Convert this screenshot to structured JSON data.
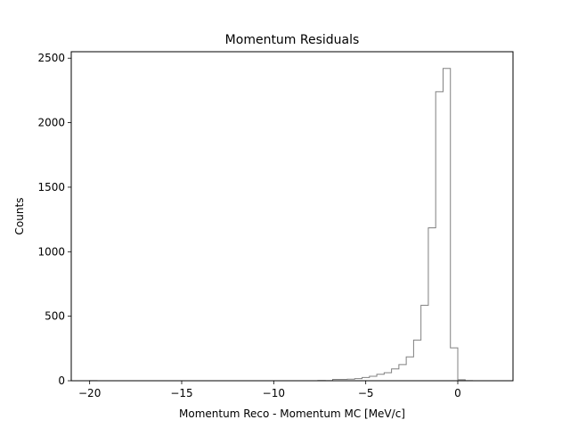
{
  "chart_data": {
    "type": "histogram",
    "title": "Momentum Residuals",
    "xlabel": "Momentum Reco - Momentum MC [MeV/c]",
    "ylabel": "Counts",
    "xlim": [
      -21.0,
      3.0
    ],
    "ylim": [
      0,
      2550
    ],
    "xticks": [
      -20,
      -15,
      -10,
      -5,
      0
    ],
    "xtick_labels": [
      "−20",
      "−15",
      "−10",
      "−5",
      "0"
    ],
    "yticks": [
      0,
      500,
      1000,
      1500,
      2000,
      2500
    ],
    "ytick_labels": [
      "0",
      "500",
      "1000",
      "1500",
      "2000",
      "2500"
    ],
    "grid": false,
    "legend": false,
    "histtype": "step",
    "line_color": "#808080",
    "bin_edges": [
      -20.0,
      -19.6,
      -19.2,
      -18.8,
      -18.4,
      -18.0,
      -17.6,
      -17.2,
      -16.8,
      -16.4,
      -16.0,
      -15.6,
      -15.2,
      -14.8,
      -14.4,
      -14.0,
      -13.6,
      -13.2,
      -12.8,
      -12.4,
      -12.0,
      -11.6,
      -11.2,
      -10.8,
      -10.4,
      -10.0,
      -9.6,
      -9.2,
      -8.8,
      -8.4,
      -8.0,
      -7.6,
      -7.2,
      -6.8,
      -6.4,
      -6.0,
      -5.6,
      -5.2,
      -4.8,
      -4.4,
      -4.0,
      -3.6,
      -3.2,
      -2.8,
      -2.4,
      -2.0,
      -1.6,
      -1.2,
      -0.8,
      -0.4,
      0.0,
      0.4,
      0.8,
      1.2,
      1.6,
      2.0
    ],
    "counts": [
      1,
      0,
      0,
      0,
      0,
      0,
      0,
      0,
      0,
      0,
      0,
      0,
      0,
      0,
      0,
      0,
      0,
      0,
      0,
      0,
      0,
      0,
      0,
      0,
      0,
      0,
      0,
      0,
      0,
      0,
      0,
      2,
      1,
      10,
      10,
      12,
      16,
      25,
      35,
      50,
      62,
      92,
      125,
      185,
      315,
      585,
      1185,
      2240,
      2420,
      255,
      8,
      1,
      0,
      0,
      0
    ]
  }
}
